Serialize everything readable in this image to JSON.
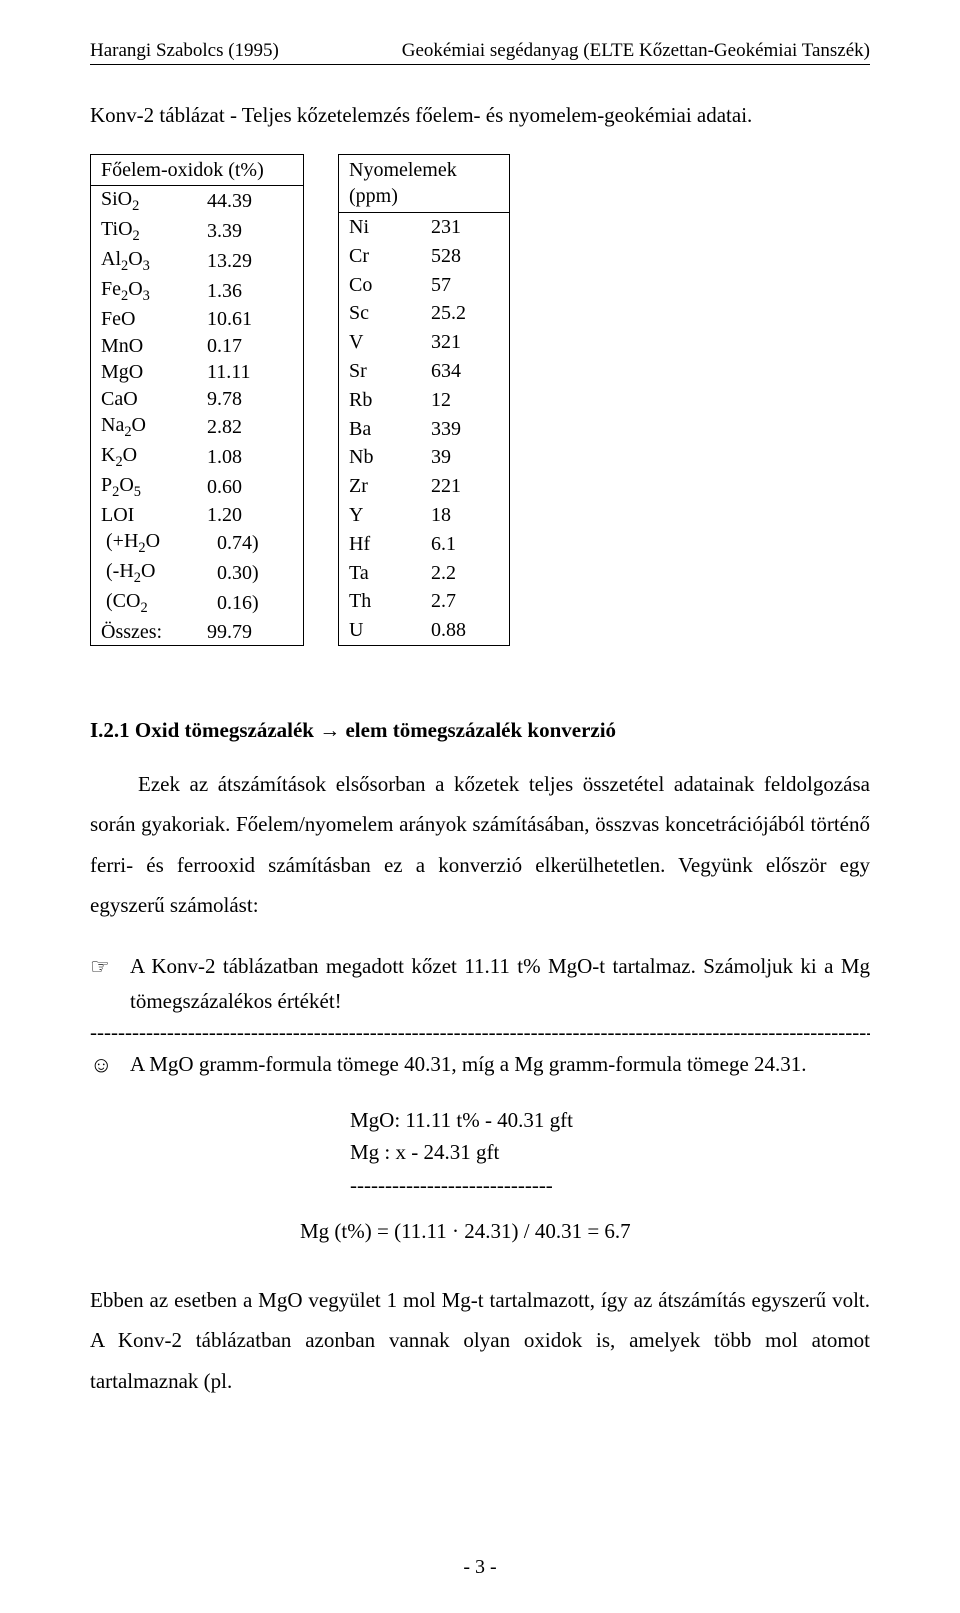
{
  "header": {
    "left": "Harangi Szabolcs (1995)",
    "right": "Geokémiai segédanyag (ELTE Kőzettan-Geokémiai Tanszék)"
  },
  "title": "Konv-2 táblázat - Teljes kőzetelemzés főelem- és nyomelem-geokémiai adatai.",
  "main_oxides": {
    "header": "Főelem-oxidok (t%)",
    "rows": [
      {
        "label_html": "SiO<span class=\"sub\">2</span>",
        "value": "44.39"
      },
      {
        "label_html": "TiO<span class=\"sub\">2</span>",
        "value": "3.39"
      },
      {
        "label_html": "Al<span class=\"sub\">2</span>O<span class=\"sub\">3</span>",
        "value": "13.29"
      },
      {
        "label_html": "Fe<span class=\"sub\">2</span>O<span class=\"sub\">3</span>",
        "value": "1.36"
      },
      {
        "label_html": "FeO",
        "value": "10.61"
      },
      {
        "label_html": "MnO",
        "value": "0.17"
      },
      {
        "label_html": "MgO",
        "value": "11.11"
      },
      {
        "label_html": "CaO",
        "value": "9.78"
      },
      {
        "label_html": "Na<span class=\"sub\">2</span>O",
        "value": "2.82"
      },
      {
        "label_html": "K<span class=\"sub\">2</span>O",
        "value": "1.08"
      },
      {
        "label_html": "P<span class=\"sub\">2</span>O<span class=\"sub\">5</span>",
        "value": "0.60"
      },
      {
        "label_html": "LOI",
        "value": "1.20"
      },
      {
        "label_html": "&nbsp;(+H<span class=\"sub\">2</span>O",
        "value": "&nbsp;&nbsp;0.74)"
      },
      {
        "label_html": "&nbsp;(-H<span class=\"sub\">2</span>O",
        "value": "&nbsp;&nbsp;0.30)"
      },
      {
        "label_html": "&nbsp;(CO<span class=\"sub\">2</span>",
        "value": "&nbsp;&nbsp;0.16)"
      },
      {
        "label_html": "Összes:",
        "value": "99.79"
      }
    ]
  },
  "trace_elements": {
    "header": "Nyomelemek (ppm)",
    "rows": [
      {
        "label": "Ni",
        "value": "231"
      },
      {
        "label": "Cr",
        "value": "528"
      },
      {
        "label": "Co",
        "value": "57"
      },
      {
        "label": "Sc",
        "value": "25.2"
      },
      {
        "label": "V",
        "value": "321"
      },
      {
        "label": "Sr",
        "value": "634"
      },
      {
        "label": "Rb",
        "value": "12"
      },
      {
        "label": "Ba",
        "value": "339"
      },
      {
        "label": "Nb",
        "value": "39"
      },
      {
        "label": "Zr",
        "value": "221"
      },
      {
        "label": "Y",
        "value": "18"
      },
      {
        "label": "Hf",
        "value": "6.1"
      },
      {
        "label": "Ta",
        "value": "2.2"
      },
      {
        "label": "Th",
        "value": "2.7"
      },
      {
        "label": "U",
        "value": "0.88"
      }
    ]
  },
  "section": {
    "heading": "I.2.1 Oxid tömegszázalék → elem tömegszázalék konverzió",
    "para1": "Ezek az átszámítások elsősorban a kőzetek teljes összetétel adatainak feldolgozása során gyakoriak. Főelem/nyomelem arányok számításában, összvas koncetrációjából történő ferri- és ferrooxid számításban ez a konverzió elkerülhetetlen. Vegyünk először egy egyszerű számolást:",
    "example_q": "A Konv-2 táblázatban megadott kőzet 11.11 t% MgO-t tartalmaz. Számoljuk ki a Mg tömegszázalékos értékét!",
    "example_a": "A MgO gramm-formula tömege 40.31, míg a Mg gramm-formula tömege 24.31.",
    "calc": {
      "l1": "MgO:  11.11 t%   -   40.31 gft",
      "l2": "Mg :      x         -   24.31 gft",
      "sep": "-----------------------------",
      "result": "Mg (t%) = (11.11 · 24.31) / 40.31 = 6.7"
    },
    "para2": "Ebben az esetben a MgO vegyület 1 mol Mg-t tartalmazott, így az átszámítás egyszerű volt. A Konv-2 táblázatban azonban vannak olyan oxidok is, amelyek több mol atomot tartalmaznak (pl."
  },
  "dash_separator": "------------------------------------------------------------------------------------------------------------------------",
  "icons": {
    "hand": "☞",
    "smile": "☺"
  },
  "page_number": "- 3 -"
}
